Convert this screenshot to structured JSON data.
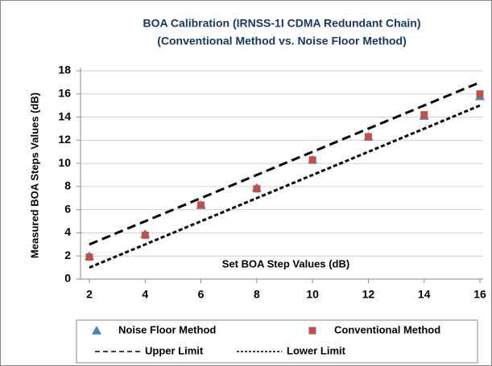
{
  "chart_data": {
    "type": "scatter",
    "title": "BOA Calibration (IRNSS-1I CDMA Redundant Chain)",
    "subtitle": "(Conventional Method vs. Noise Floor Method)",
    "x_label": "Set BOA Step Values (dB)",
    "y_label": "Measured BOA Steps Values (dB)",
    "x": [
      2,
      4,
      6,
      8,
      10,
      12,
      14,
      16
    ],
    "series": [
      {
        "name": "Noise Floor Method",
        "color": "#4f81bd",
        "marker": "triangle",
        "values": [
          2.0,
          3.9,
          6.4,
          7.9,
          10.3,
          12.3,
          14.1,
          15.8
        ]
      },
      {
        "name": "Conventional Method",
        "color": "#c0504d",
        "marker": "square",
        "values": [
          1.9,
          3.8,
          6.4,
          7.8,
          10.3,
          12.3,
          14.2,
          16.0
        ]
      },
      {
        "name": "Upper Limit",
        "color": "#000000",
        "line": "long-dash",
        "values": [
          3,
          5,
          7,
          9,
          11,
          13,
          15,
          17
        ]
      },
      {
        "name": "Lower Limit",
        "color": "#000000",
        "line": "short-dash",
        "values": [
          1,
          3,
          5,
          7,
          9,
          11,
          13,
          15
        ]
      }
    ],
    "xlim": [
      2,
      16
    ],
    "xticks": [
      2,
      4,
      6,
      8,
      10,
      12,
      14,
      16
    ],
    "ylim": [
      0,
      18
    ],
    "yticks": [
      0,
      2,
      4,
      6,
      8,
      10,
      12,
      14,
      16,
      18
    ],
    "grid": true,
    "legend": "bottom"
  }
}
